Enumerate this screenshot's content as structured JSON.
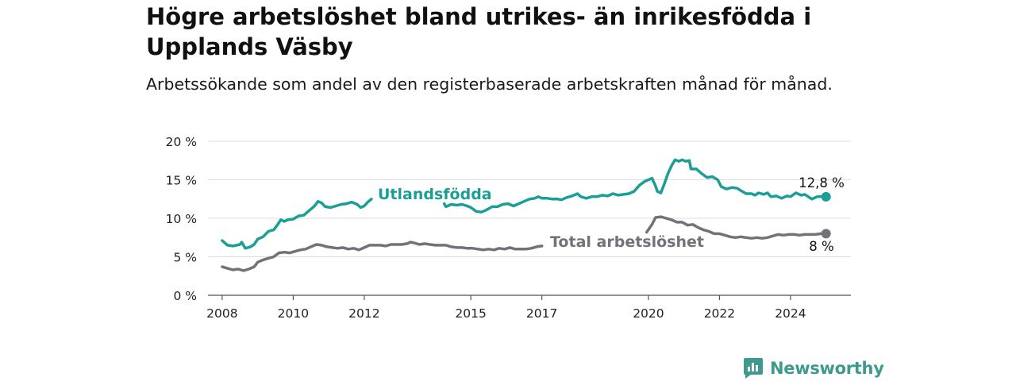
{
  "title": "Högre arbetslöshet bland utrikes- än inrikesfödda i Upplands Väsby",
  "subtitle": "Arbetssökande som andel av den registerbaserade arbetskraften månad för månad.",
  "brand": "Newsworthy",
  "colors": {
    "foreign": "#1a9e96",
    "total": "#737278",
    "grid": "#dddddd",
    "axis": "#555555",
    "brand": "#3e9a8e"
  },
  "chart_data": {
    "type": "line",
    "y_tick_labels": [
      "0 %",
      "5 %",
      "10 %",
      "15 %",
      "20 %"
    ],
    "y_ticks": [
      0,
      5,
      10,
      15,
      20
    ],
    "ylim": [
      0,
      20
    ],
    "x_ticks": [
      2008,
      2010,
      2012,
      2015,
      2017,
      2020,
      2022,
      2024
    ],
    "x_tick_labels": [
      "2008",
      "2010",
      "2012",
      "2015",
      "2017",
      "2020",
      "2022",
      "2024"
    ],
    "xlim": [
      2007.6,
      2025.7
    ],
    "grid": true,
    "series": [
      {
        "name": "Utlandsfödda",
        "color": "#1a9e96",
        "end_label": "12,8 %",
        "segments": [
          [
            [
              2008.0,
              7.1
            ],
            [
              2008.15,
              6.5
            ],
            [
              2008.3,
              6.4
            ],
            [
              2008.5,
              6.6
            ],
            [
              2008.55,
              6.9
            ],
            [
              2008.65,
              6.1
            ],
            [
              2008.8,
              6.3
            ],
            [
              2008.9,
              6.6
            ],
            [
              2009.0,
              7.3
            ],
            [
              2009.15,
              7.6
            ],
            [
              2009.3,
              8.3
            ],
            [
              2009.45,
              8.5
            ],
            [
              2009.55,
              9.1
            ],
            [
              2009.65,
              9.8
            ],
            [
              2009.75,
              9.6
            ],
            [
              2009.85,
              9.8
            ],
            [
              2010.0,
              9.9
            ],
            [
              2010.15,
              10.3
            ],
            [
              2010.3,
              10.4
            ],
            [
              2010.45,
              11.0
            ],
            [
              2010.6,
              11.6
            ],
            [
              2010.7,
              12.2
            ],
            [
              2010.8,
              12.0
            ],
            [
              2010.9,
              11.5
            ],
            [
              2011.05,
              11.4
            ],
            [
              2011.2,
              11.6
            ],
            [
              2011.35,
              11.8
            ],
            [
              2011.5,
              11.9
            ],
            [
              2011.65,
              12.1
            ],
            [
              2011.8,
              11.8
            ],
            [
              2011.9,
              11.4
            ],
            [
              2012.0,
              11.6
            ],
            [
              2012.1,
              12.1
            ],
            [
              2012.2,
              12.5
            ]
          ],
          [
            [
              2014.25,
              11.9
            ],
            [
              2014.3,
              11.5
            ],
            [
              2014.45,
              11.8
            ],
            [
              2014.6,
              11.7
            ],
            [
              2014.75,
              11.8
            ],
            [
              2014.9,
              11.6
            ],
            [
              2015.0,
              11.4
            ],
            [
              2015.15,
              10.9
            ],
            [
              2015.3,
              10.8
            ],
            [
              2015.45,
              11.1
            ],
            [
              2015.6,
              11.5
            ],
            [
              2015.75,
              11.5
            ],
            [
              2015.9,
              11.8
            ],
            [
              2016.05,
              11.9
            ],
            [
              2016.2,
              11.6
            ],
            [
              2016.35,
              11.9
            ],
            [
              2016.5,
              12.2
            ],
            [
              2016.65,
              12.5
            ],
            [
              2016.8,
              12.6
            ],
            [
              2016.9,
              12.8
            ],
            [
              2017.0,
              12.6
            ],
            [
              2017.15,
              12.6
            ],
            [
              2017.3,
              12.5
            ],
            [
              2017.45,
              12.5
            ],
            [
              2017.55,
              12.4
            ],
            [
              2017.7,
              12.7
            ],
            [
              2017.85,
              12.9
            ],
            [
              2018.0,
              13.2
            ],
            [
              2018.1,
              12.8
            ],
            [
              2018.25,
              12.6
            ],
            [
              2018.4,
              12.8
            ],
            [
              2018.55,
              12.8
            ],
            [
              2018.7,
              13.0
            ],
            [
              2018.85,
              12.9
            ],
            [
              2019.0,
              13.2
            ],
            [
              2019.15,
              13.0
            ],
            [
              2019.3,
              13.1
            ],
            [
              2019.45,
              13.2
            ],
            [
              2019.6,
              13.5
            ],
            [
              2019.75,
              14.3
            ],
            [
              2019.9,
              14.8
            ],
            [
              2020.0,
              15.0
            ],
            [
              2020.1,
              15.2
            ],
            [
              2020.2,
              14.2
            ],
            [
              2020.25,
              13.5
            ],
            [
              2020.35,
              13.3
            ],
            [
              2020.45,
              14.5
            ],
            [
              2020.55,
              15.8
            ],
            [
              2020.65,
              16.8
            ],
            [
              2020.75,
              17.6
            ],
            [
              2020.85,
              17.4
            ],
            [
              2020.95,
              17.6
            ],
            [
              2021.05,
              17.4
            ],
            [
              2021.15,
              17.5
            ],
            [
              2021.2,
              16.4
            ],
            [
              2021.35,
              16.4
            ],
            [
              2021.5,
              15.8
            ],
            [
              2021.65,
              15.3
            ],
            [
              2021.8,
              15.4
            ],
            [
              2021.95,
              15.0
            ],
            [
              2022.05,
              14.1
            ],
            [
              2022.2,
              13.8
            ],
            [
              2022.35,
              14.0
            ],
            [
              2022.5,
              13.9
            ],
            [
              2022.6,
              13.6
            ],
            [
              2022.75,
              13.2
            ],
            [
              2022.9,
              13.2
            ],
            [
              2023.0,
              13.0
            ],
            [
              2023.1,
              13.3
            ],
            [
              2023.25,
              13.1
            ],
            [
              2023.35,
              13.3
            ],
            [
              2023.45,
              12.8
            ],
            [
              2023.6,
              12.9
            ],
            [
              2023.75,
              12.6
            ],
            [
              2023.9,
              12.9
            ],
            [
              2024.0,
              12.8
            ],
            [
              2024.15,
              13.3
            ],
            [
              2024.3,
              13.0
            ],
            [
              2024.4,
              13.1
            ],
            [
              2024.5,
              12.8
            ],
            [
              2024.6,
              12.5
            ],
            [
              2024.75,
              12.8
            ],
            [
              2024.9,
              12.8
            ],
            [
              2025.0,
              12.8
            ]
          ]
        ]
      },
      {
        "name": "Total arbetslöshet",
        "color": "#737278",
        "end_label": "8 %",
        "segments": [
          [
            [
              2008.0,
              3.7
            ],
            [
              2008.15,
              3.5
            ],
            [
              2008.3,
              3.3
            ],
            [
              2008.45,
              3.4
            ],
            [
              2008.6,
              3.2
            ],
            [
              2008.75,
              3.4
            ],
            [
              2008.9,
              3.7
            ],
            [
              2009.0,
              4.3
            ],
            [
              2009.15,
              4.6
            ],
            [
              2009.3,
              4.8
            ],
            [
              2009.45,
              5.0
            ],
            [
              2009.6,
              5.5
            ],
            [
              2009.75,
              5.6
            ],
            [
              2009.9,
              5.5
            ],
            [
              2010.05,
              5.7
            ],
            [
              2010.2,
              5.9
            ],
            [
              2010.35,
              6.0
            ],
            [
              2010.5,
              6.3
            ],
            [
              2010.65,
              6.6
            ],
            [
              2010.8,
              6.5
            ],
            [
              2010.95,
              6.3
            ],
            [
              2011.1,
              6.2
            ],
            [
              2011.25,
              6.1
            ],
            [
              2011.4,
              6.2
            ],
            [
              2011.55,
              6.0
            ],
            [
              2011.7,
              6.1
            ],
            [
              2011.85,
              5.9
            ],
            [
              2012.0,
              6.2
            ],
            [
              2012.15,
              6.5
            ],
            [
              2012.3,
              6.5
            ],
            [
              2012.45,
              6.5
            ],
            [
              2012.6,
              6.4
            ],
            [
              2012.75,
              6.6
            ],
            [
              2012.9,
              6.6
            ],
            [
              2013.05,
              6.6
            ],
            [
              2013.2,
              6.7
            ],
            [
              2013.3,
              6.9
            ],
            [
              2013.4,
              6.8
            ],
            [
              2013.55,
              6.6
            ],
            [
              2013.7,
              6.7
            ],
            [
              2013.85,
              6.6
            ],
            [
              2014.0,
              6.5
            ],
            [
              2014.15,
              6.5
            ],
            [
              2014.3,
              6.5
            ],
            [
              2014.45,
              6.3
            ],
            [
              2014.6,
              6.2
            ],
            [
              2014.75,
              6.2
            ],
            [
              2014.9,
              6.1
            ],
            [
              2015.05,
              6.1
            ],
            [
              2015.2,
              6.0
            ],
            [
              2015.35,
              5.9
            ],
            [
              2015.5,
              6.0
            ],
            [
              2015.65,
              5.9
            ],
            [
              2015.8,
              6.1
            ],
            [
              2015.95,
              6.0
            ],
            [
              2016.1,
              6.2
            ],
            [
              2016.25,
              6.0
            ],
            [
              2016.4,
              6.0
            ],
            [
              2016.55,
              6.0
            ],
            [
              2016.7,
              6.1
            ],
            [
              2016.85,
              6.3
            ],
            [
              2017.0,
              6.4
            ]
          ],
          [
            [
              2019.95,
              8.2
            ],
            [
              2020.1,
              9.2
            ],
            [
              2020.2,
              10.1
            ],
            [
              2020.35,
              10.2
            ],
            [
              2020.5,
              10.0
            ],
            [
              2020.65,
              9.8
            ],
            [
              2020.8,
              9.5
            ],
            [
              2020.95,
              9.5
            ],
            [
              2021.1,
              9.1
            ],
            [
              2021.25,
              9.2
            ],
            [
              2021.4,
              8.8
            ],
            [
              2021.55,
              8.5
            ],
            [
              2021.7,
              8.3
            ],
            [
              2021.85,
              8.0
            ],
            [
              2022.0,
              8.0
            ],
            [
              2022.15,
              7.8
            ],
            [
              2022.3,
              7.6
            ],
            [
              2022.45,
              7.5
            ],
            [
              2022.6,
              7.6
            ],
            [
              2022.75,
              7.5
            ],
            [
              2022.9,
              7.4
            ],
            [
              2023.05,
              7.5
            ],
            [
              2023.2,
              7.4
            ],
            [
              2023.35,
              7.5
            ],
            [
              2023.5,
              7.7
            ],
            [
              2023.65,
              7.9
            ],
            [
              2023.8,
              7.8
            ],
            [
              2023.95,
              7.9
            ],
            [
              2024.1,
              7.9
            ],
            [
              2024.25,
              7.8
            ],
            [
              2024.4,
              7.9
            ],
            [
              2024.55,
              7.9
            ],
            [
              2024.7,
              7.9
            ],
            [
              2024.85,
              8.0
            ],
            [
              2025.0,
              8.0
            ]
          ]
        ]
      }
    ]
  }
}
